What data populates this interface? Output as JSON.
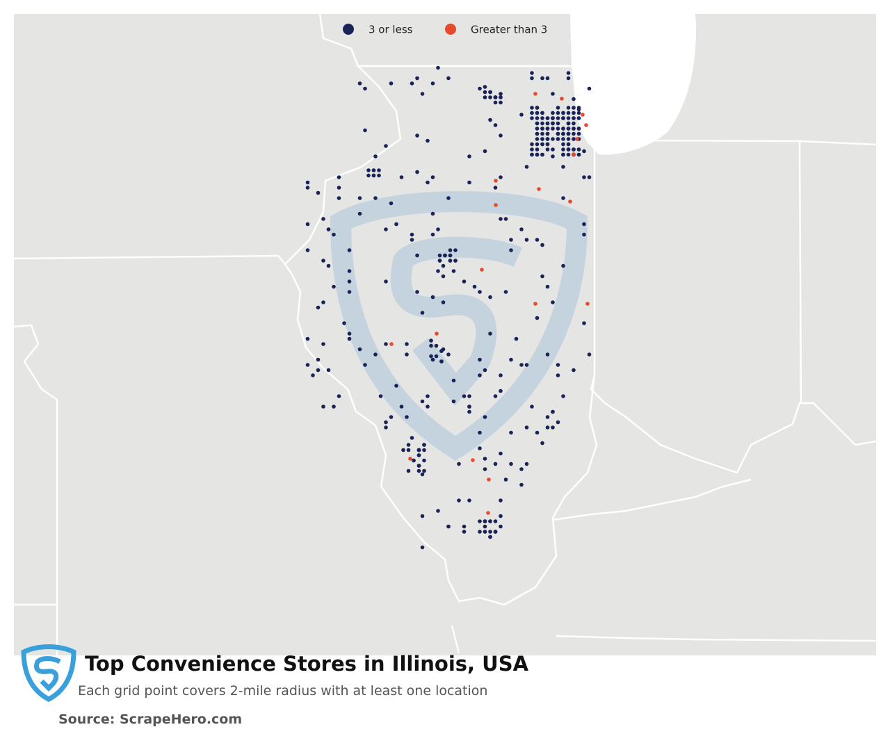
{
  "legend": [
    {
      "label": "3 or less",
      "color": "#1a2357"
    },
    {
      "label": "Greater than 3",
      "color": "#e64a2e"
    }
  ],
  "title": "Top Convenience Stores in Illinois, USA",
  "subtitle": "Each grid point covers 2-mile radius with at least one location",
  "source": "Source: ScrapeHero.com"
}
